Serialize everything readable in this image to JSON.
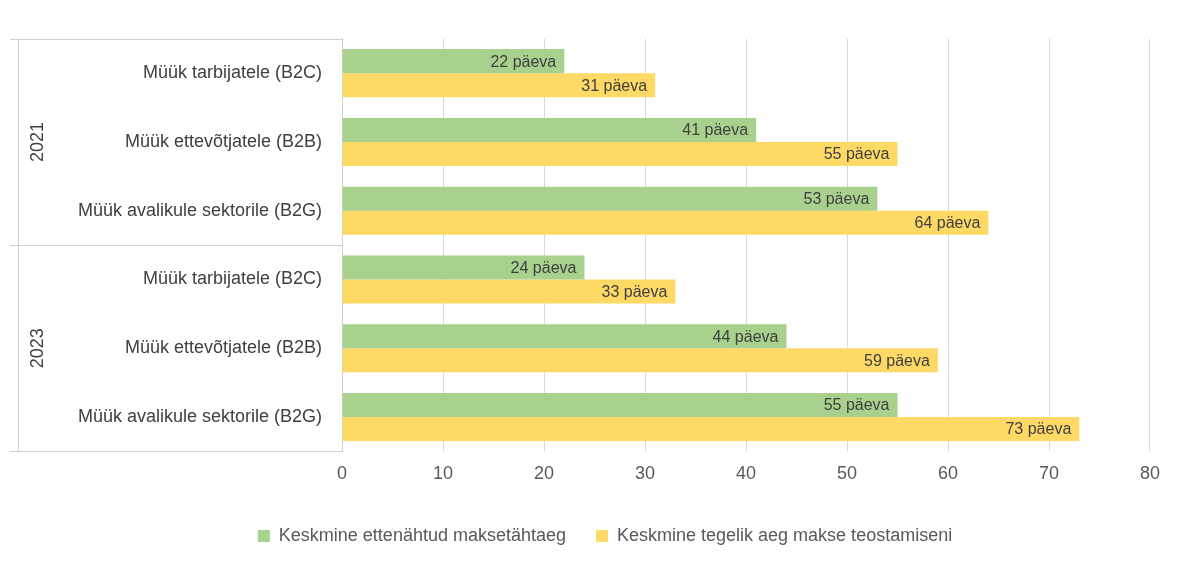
{
  "chart_data": {
    "type": "bar",
    "orientation": "horizontal",
    "categories": [
      "Müük tarbijatele (B2C)",
      "Müük ettevõtjatele (B2B)",
      "Müük avalikule sektorile (B2G)",
      "Müük tarbijatele (B2C)",
      "Müük ettevõtjatele (B2B)",
      "Müük avalikule sektorile (B2G)"
    ],
    "series": [
      {
        "name": "Keskmine ettenähtud maksetähtaeg",
        "color": "#a9d18e",
        "values": [
          22,
          41,
          53,
          24,
          44,
          55
        ],
        "value_labels": [
          "22 päeva",
          "41 päeva",
          "53 päeva",
          "24 päeva",
          "44 päeva",
          "55 päeva"
        ]
      },
      {
        "name": "Keskmine tegelik aeg makse teostamiseni",
        "color": "#ffd966",
        "values": [
          31,
          55,
          64,
          33,
          59,
          73
        ],
        "value_labels": [
          "31 päeva",
          "55 päeva",
          "64 päeva",
          "33 päeva",
          "59 päeva",
          "73 päeva"
        ]
      }
    ],
    "annotations": [
      "2021",
      "2023"
    ],
    "xlim": [
      0,
      80
    ],
    "xticks": [
      0,
      10,
      20,
      30,
      40,
      50,
      60,
      70,
      80
    ],
    "grid": "x",
    "legend": "bottom"
  }
}
